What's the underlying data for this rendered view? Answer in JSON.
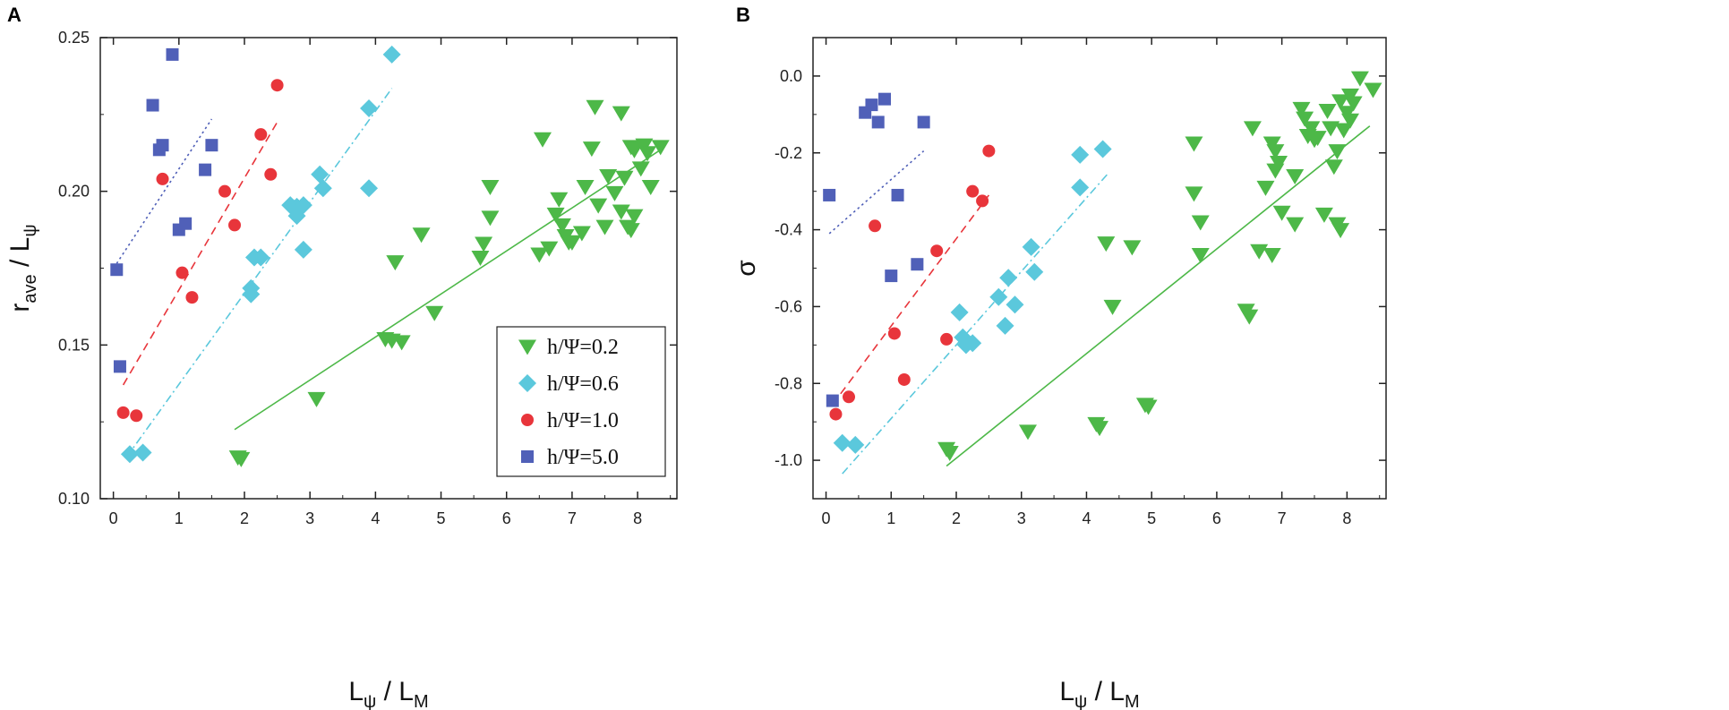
{
  "chart_data": [
    {
      "type": "scatter",
      "panel": "A",
      "xlabel": {
        "main": "L",
        "sub1": "ψ",
        "mid": " / L",
        "sub2": "M"
      },
      "ylabel": {
        "main": "r",
        "sub1": "ave",
        "mid": " / L",
        "sub2": "ψ"
      },
      "xlim": [
        -0.2,
        8.6
      ],
      "ylim": [
        0.1,
        0.25
      ],
      "xticks": [
        0,
        1,
        2,
        3,
        4,
        5,
        6,
        7,
        8
      ],
      "xtick_labels": [
        "0",
        "1",
        "2",
        "3",
        "4",
        "5",
        "6",
        "7",
        "8"
      ],
      "yticks": [
        0.1,
        0.15,
        0.2,
        0.25
      ],
      "ytick_labels": [
        "0.10",
        "0.15",
        "0.20",
        "0.25"
      ],
      "legend_position": "bottom-right",
      "series": [
        {
          "name": "h/Ψ=0.2",
          "marker": "triangle-down",
          "color": "#4db848",
          "line_style": "solid",
          "fit": [
            [
              1.85,
              0.1225
            ],
            [
              8.35,
              0.2135
            ]
          ],
          "points": [
            [
              1.9,
              0.1135
            ],
            [
              1.95,
              0.113
            ],
            [
              3.1,
              0.1325
            ],
            [
              4.15,
              0.152
            ],
            [
              4.25,
              0.1515
            ],
            [
              4.4,
              0.151
            ],
            [
              4.3,
              0.177
            ],
            [
              4.7,
              0.186
            ],
            [
              4.9,
              0.1605
            ],
            [
              5.6,
              0.1785
            ],
            [
              5.65,
              0.183
            ],
            [
              5.75,
              0.1915
            ],
            [
              5.75,
              0.2015
            ],
            [
              6.5,
              0.1795
            ],
            [
              6.55,
              0.217
            ],
            [
              6.65,
              0.1815
            ],
            [
              6.75,
              0.1925
            ],
            [
              6.8,
              0.1975
            ],
            [
              6.85,
              0.189
            ],
            [
              6.9,
              0.1855
            ],
            [
              6.95,
              0.1835
            ],
            [
              7.0,
              0.1835
            ],
            [
              7.15,
              0.1865
            ],
            [
              7.2,
              0.2015
            ],
            [
              7.3,
              0.214
            ],
            [
              7.35,
              0.2275
            ],
            [
              7.4,
              0.1955
            ],
            [
              7.5,
              0.1885
            ],
            [
              7.55,
              0.205
            ],
            [
              7.65,
              0.1995
            ],
            [
              7.75,
              0.2255
            ],
            [
              7.75,
              0.1935
            ],
            [
              7.8,
              0.2045
            ],
            [
              7.85,
              0.1885
            ],
            [
              7.9,
              0.1875
            ],
            [
              7.95,
              0.192
            ],
            [
              7.9,
              0.2145
            ],
            [
              7.95,
              0.2135
            ],
            [
              8.05,
              0.2075
            ],
            [
              8.1,
              0.215
            ],
            [
              8.15,
              0.2125
            ],
            [
              8.2,
              0.2015
            ],
            [
              8.35,
              0.2145
            ]
          ]
        },
        {
          "name": "h/Ψ=0.6",
          "marker": "diamond",
          "color": "#5bc8dc",
          "line_style": "dashdot",
          "fit": [
            [
              0.2,
              0.1135
            ],
            [
              4.25,
              0.2335
            ]
          ],
          "points": [
            [
              0.25,
              0.1145
            ],
            [
              0.45,
              0.115
            ],
            [
              2.1,
              0.1685
            ],
            [
              2.1,
              0.1665
            ],
            [
              2.15,
              0.1785
            ],
            [
              2.25,
              0.1785
            ],
            [
              2.7,
              0.1955
            ],
            [
              2.75,
              0.1945
            ],
            [
              2.8,
              0.195
            ],
            [
              2.8,
              0.192
            ],
            [
              2.9,
              0.1955
            ],
            [
              2.9,
              0.181
            ],
            [
              3.15,
              0.2055
            ],
            [
              3.2,
              0.201
            ],
            [
              3.9,
              0.201
            ],
            [
              3.9,
              0.227
            ],
            [
              4.25,
              0.2445
            ]
          ]
        },
        {
          "name": "h/Ψ=1.0",
          "marker": "circle",
          "color": "#e8353b",
          "line_style": "dashed",
          "fit": [
            [
              0.15,
              0.137
            ],
            [
              2.5,
              0.2225
            ]
          ],
          "points": [
            [
              0.15,
              0.128
            ],
            [
              0.35,
              0.127
            ],
            [
              0.75,
              0.204
            ],
            [
              1.05,
              0.1735
            ],
            [
              1.2,
              0.1655
            ],
            [
              1.7,
              0.2
            ],
            [
              1.85,
              0.189
            ],
            [
              2.25,
              0.2185
            ],
            [
              2.4,
              0.2055
            ],
            [
              2.5,
              0.2345
            ]
          ]
        },
        {
          "name": "h/Ψ=5.0",
          "marker": "square",
          "color": "#5060b8",
          "line_style": "dotted",
          "fit": [
            [
              0.05,
              0.1765
            ],
            [
              1.5,
              0.2235
            ]
          ],
          "points": [
            [
              0.05,
              0.1745
            ],
            [
              0.1,
              0.143
            ],
            [
              0.6,
              0.228
            ],
            [
              0.7,
              0.2135
            ],
            [
              0.75,
              0.215
            ],
            [
              0.9,
              0.2445
            ],
            [
              1.0,
              0.1875
            ],
            [
              1.1,
              0.1895
            ],
            [
              1.4,
              0.207
            ],
            [
              1.5,
              0.215
            ]
          ]
        }
      ]
    },
    {
      "type": "scatter",
      "panel": "B",
      "xlabel": {
        "main": "L",
        "sub1": "ψ",
        "mid": " / L",
        "sub2": "M"
      },
      "ylabel": {
        "main": "σ"
      },
      "xlim": [
        -0.2,
        8.6
      ],
      "ylim": [
        -1.1,
        0.1
      ],
      "xticks": [
        0,
        1,
        2,
        3,
        4,
        5,
        6,
        7,
        8
      ],
      "xtick_labels": [
        "0",
        "1",
        "2",
        "3",
        "4",
        "5",
        "6",
        "7",
        "8"
      ],
      "yticks": [
        -1.0,
        -0.8,
        -0.6,
        -0.4,
        -0.2,
        0.0
      ],
      "ytick_labels": [
        "-1.0",
        "-0.8",
        "-0.6",
        "-0.4",
        "-0.2",
        "0.0"
      ],
      "series": [
        {
          "name": "h/Ψ=0.2",
          "marker": "triangle-down",
          "color": "#4db848",
          "line_style": "solid",
          "fit": [
            [
              1.85,
              -1.015
            ],
            [
              8.35,
              -0.13
            ]
          ],
          "points": [
            [
              1.85,
              -0.97
            ],
            [
              1.9,
              -0.98
            ],
            [
              3.1,
              -0.925
            ],
            [
              4.15,
              -0.905
            ],
            [
              4.2,
              -0.915
            ],
            [
              4.3,
              -0.435
            ],
            [
              4.4,
              -0.6
            ],
            [
              4.7,
              -0.445
            ],
            [
              4.9,
              -0.855
            ],
            [
              4.95,
              -0.86
            ],
            [
              5.65,
              -0.175
            ],
            [
              5.65,
              -0.305
            ],
            [
              5.75,
              -0.38
            ],
            [
              5.75,
              -0.465
            ],
            [
              6.45,
              -0.61
            ],
            [
              6.5,
              -0.625
            ],
            [
              6.55,
              -0.135
            ],
            [
              6.65,
              -0.455
            ],
            [
              6.75,
              -0.29
            ],
            [
              6.85,
              -0.175
            ],
            [
              6.9,
              -0.245
            ],
            [
              6.9,
              -0.195
            ],
            [
              6.85,
              -0.465
            ],
            [
              6.95,
              -0.225
            ],
            [
              7.0,
              -0.355
            ],
            [
              7.2,
              -0.385
            ],
            [
              7.2,
              -0.26
            ],
            [
              7.3,
              -0.085
            ],
            [
              7.35,
              -0.11
            ],
            [
              7.4,
              -0.155
            ],
            [
              7.45,
              -0.135
            ],
            [
              7.5,
              -0.165
            ],
            [
              7.55,
              -0.16
            ],
            [
              7.65,
              -0.36
            ],
            [
              7.7,
              -0.09
            ],
            [
              7.75,
              -0.135
            ],
            [
              7.8,
              -0.235
            ],
            [
              7.85,
              -0.385
            ],
            [
              7.85,
              -0.195
            ],
            [
              7.9,
              -0.4
            ],
            [
              7.9,
              -0.065
            ],
            [
              7.95,
              -0.14
            ],
            [
              8.0,
              -0.095
            ],
            [
              8.05,
              -0.115
            ],
            [
              8.05,
              -0.05
            ],
            [
              8.1,
              -0.07
            ],
            [
              8.2,
              -0.005
            ],
            [
              8.4,
              -0.035
            ]
          ]
        },
        {
          "name": "h/Ψ=0.6",
          "marker": "diamond",
          "color": "#5bc8dc",
          "line_style": "dashdot",
          "fit": [
            [
              0.25,
              -1.035
            ],
            [
              4.35,
              -0.25
            ]
          ],
          "points": [
            [
              0.25,
              -0.955
            ],
            [
              0.45,
              -0.96
            ],
            [
              2.05,
              -0.615
            ],
            [
              2.1,
              -0.68
            ],
            [
              2.15,
              -0.7
            ],
            [
              2.25,
              -0.695
            ],
            [
              2.65,
              -0.575
            ],
            [
              2.75,
              -0.65
            ],
            [
              2.8,
              -0.525
            ],
            [
              2.9,
              -0.595
            ],
            [
              3.15,
              -0.445
            ],
            [
              3.2,
              -0.51
            ],
            [
              3.9,
              -0.205
            ],
            [
              3.9,
              -0.29
            ],
            [
              4.25,
              -0.19
            ]
          ]
        },
        {
          "name": "h/Ψ=1.0",
          "marker": "circle",
          "color": "#e8353b",
          "line_style": "dashed",
          "fit": [
            [
              0.1,
              -0.855
            ],
            [
              2.5,
              -0.31
            ]
          ],
          "points": [
            [
              0.15,
              -0.88
            ],
            [
              0.35,
              -0.835
            ],
            [
              0.75,
              -0.39
            ],
            [
              1.05,
              -0.67
            ],
            [
              1.2,
              -0.79
            ],
            [
              1.7,
              -0.455
            ],
            [
              1.85,
              -0.685
            ],
            [
              2.25,
              -0.3
            ],
            [
              2.4,
              -0.325
            ],
            [
              2.5,
              -0.195
            ]
          ]
        },
        {
          "name": "h/Ψ=5.0",
          "marker": "square",
          "color": "#5060b8",
          "line_style": "dotted",
          "fit": [
            [
              0.05,
              -0.41
            ],
            [
              1.5,
              -0.195
            ]
          ],
          "points": [
            [
              0.05,
              -0.31
            ],
            [
              0.1,
              -0.845
            ],
            [
              0.6,
              -0.095
            ],
            [
              0.7,
              -0.075
            ],
            [
              0.8,
              -0.12
            ],
            [
              0.9,
              -0.06
            ],
            [
              1.0,
              -0.52
            ],
            [
              1.1,
              -0.31
            ],
            [
              1.4,
              -0.49
            ],
            [
              1.5,
              -0.12
            ]
          ]
        }
      ]
    }
  ]
}
